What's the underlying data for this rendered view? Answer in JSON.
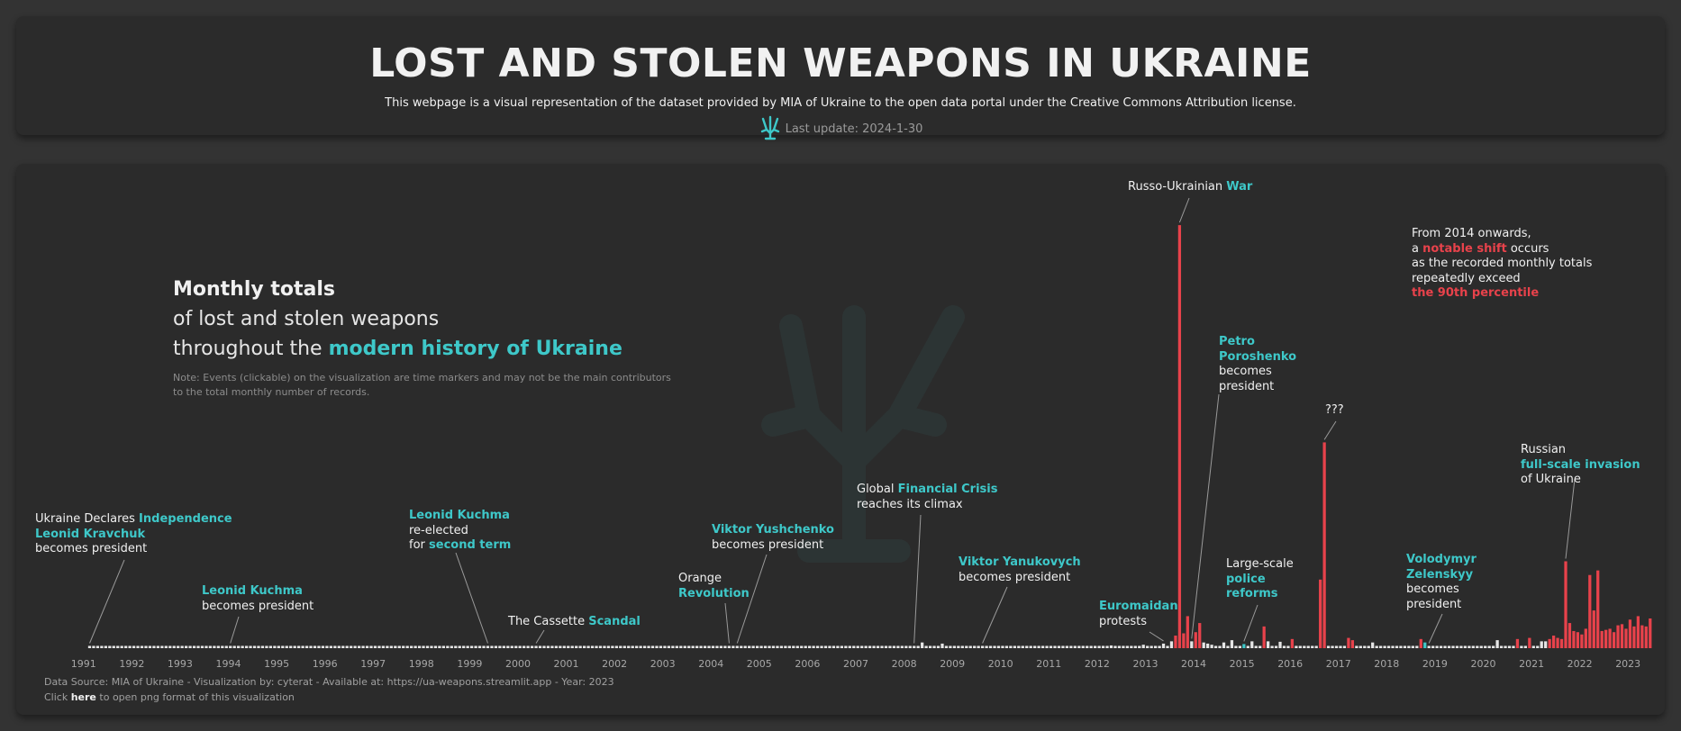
{
  "header": {
    "title": "LOST AND STOLEN WEAPONS IN UKRAINE",
    "subtitle": "This webpage is a visual representation of the dataset provided by MIA of Ukraine to the open data portal under the Creative Commons Attribution license.",
    "update_label": "Last update: 2024-1-30"
  },
  "intro": {
    "line1": "Monthly totals",
    "line2": "of lost and stolen weapons",
    "line3_prefix": "throughout the ",
    "line3_highlight": "modern history of Ukraine",
    "note": "Note: Events (clickable) on the visualization are time markers and may not be the main contributors to the total monthly number of records."
  },
  "annotations": {
    "independence": {
      "l1_prefix": "Ukraine Declares ",
      "l1_hl": "Independence",
      "l2_hl": "Leonid Kravchuk",
      "l3": "becomes president"
    },
    "kuchma1": {
      "l1_hl": "Leonid Kuchma",
      "l2": "becomes president"
    },
    "kuchma2": {
      "l1_hl": "Leonid Kuchma",
      "l2": "re-elected",
      "l3_prefix": "for ",
      "l3_hl": "second term"
    },
    "cassette": {
      "l1_prefix": "The Cassette ",
      "l1_hl": "Scandal"
    },
    "orange": {
      "l1": "Orange",
      "l2_hl": "Revolution"
    },
    "yushchenko": {
      "l1_hl": "Viktor Yushchenko",
      "l2": "becomes president"
    },
    "crisis": {
      "l1_prefix": "Global ",
      "l1_hl": "Financial Crisis",
      "l2": "reaches its climax"
    },
    "yanukovych": {
      "l1_hl": "Viktor Yanukovych",
      "l2": "becomes president"
    },
    "euromaidan": {
      "l1_hl": "Euromaidan",
      "l2": "protests"
    },
    "war": {
      "l1_prefix": "Russo-Ukrainian ",
      "l1_hl": "War"
    },
    "poroshenko": {
      "l1_hl": "Petro",
      "l2_hl": "Poroshenko",
      "l3": "becomes",
      "l4": "president"
    },
    "police": {
      "l1": "Large-scale",
      "l2_hl": "police",
      "l3_hl": "reforms"
    },
    "question": {
      "l1": "???"
    },
    "shift": {
      "l1": "From 2014 onwards,",
      "l2_prefix": "a ",
      "l2_red": "notable shift",
      "l2_suffix": " occurs",
      "l3": "as the recorded monthly totals",
      "l4": "repeatedly exceed",
      "l5_red": "the 90th percentile"
    },
    "zelenskyy": {
      "l1_hl": "Volodymyr",
      "l2_hl": "Zelenskyy",
      "l3": "becomes",
      "l4": "president"
    },
    "invasion": {
      "l1": "Russian",
      "l2_hl": "full-scale invasion",
      "l3": "of Ukraine"
    }
  },
  "footer": {
    "source": "Data Source: MIA of Ukraine - Visualization by: cyterat - Available at: https://ua-weapons.streamlit.app - Year: 2023",
    "click_prefix": "Click ",
    "click_link": "here",
    "click_suffix": " to open png format of this visualization"
  },
  "colors": {
    "background": "#333333",
    "card": "#2b2b2b",
    "accent": "#3ec8c9",
    "above_p90": "#e8424b",
    "normal_bar": "#e6e6e6"
  },
  "chart_data": {
    "type": "bar",
    "x_start": "1991-01",
    "x_end": "2023-12",
    "xticks": [
      "1991",
      "1992",
      "1993",
      "1994",
      "1995",
      "1996",
      "1997",
      "1998",
      "1999",
      "2000",
      "2001",
      "2002",
      "2003",
      "2004",
      "2005",
      "2006",
      "2007",
      "2008",
      "2009",
      "2010",
      "2011",
      "2012",
      "2013",
      "2014",
      "2015",
      "2016",
      "2017",
      "2018",
      "2019",
      "2020",
      "2021",
      "2022",
      "2023"
    ],
    "ylim": [
      0,
      2000
    ],
    "grid": false,
    "baseline_value": 10,
    "monthly_highlights": [
      {
        "month": "2008-11",
        "value": 25
      },
      {
        "month": "2009-04",
        "value": 20
      },
      {
        "month": "2012-10",
        "value": 12
      },
      {
        "month": "2013-06",
        "value": 15
      },
      {
        "month": "2013-11",
        "value": 20
      },
      {
        "month": "2014-01",
        "value": 30
      },
      {
        "month": "2014-02",
        "value": 55,
        "red": true
      },
      {
        "month": "2014-03",
        "value": 1850,
        "red": true
      },
      {
        "month": "2014-04",
        "value": 65,
        "red": true
      },
      {
        "month": "2014-05",
        "value": 140,
        "red": true
      },
      {
        "month": "2014-06",
        "value": 30
      },
      {
        "month": "2014-07",
        "value": 70,
        "red": true
      },
      {
        "month": "2014-08",
        "value": 110,
        "red": true
      },
      {
        "month": "2014-09",
        "value": 25
      },
      {
        "month": "2014-10",
        "value": 20
      },
      {
        "month": "2014-11",
        "value": 15
      },
      {
        "month": "2015-02",
        "value": 25
      },
      {
        "month": "2015-04",
        "value": 35
      },
      {
        "month": "2015-07",
        "value": 18,
        "accent": true
      },
      {
        "month": "2015-09",
        "value": 30
      },
      {
        "month": "2015-12",
        "value": 95,
        "red": true
      },
      {
        "month": "2016-01",
        "value": 30
      },
      {
        "month": "2016-04",
        "value": 28
      },
      {
        "month": "2016-07",
        "value": 40,
        "red": true
      },
      {
        "month": "2017-02",
        "value": 300,
        "red": true
      },
      {
        "month": "2017-03",
        "value": 900,
        "red": true
      },
      {
        "month": "2017-09",
        "value": 45,
        "red": true
      },
      {
        "month": "2017-10",
        "value": 35,
        "red": true
      },
      {
        "month": "2018-03",
        "value": 25
      },
      {
        "month": "2019-03",
        "value": 40,
        "red": true
      },
      {
        "month": "2019-04",
        "value": 25,
        "accent": true
      },
      {
        "month": "2020-10",
        "value": 35
      },
      {
        "month": "2021-03",
        "value": 40,
        "red": true
      },
      {
        "month": "2021-06",
        "value": 45,
        "red": true
      },
      {
        "month": "2021-09",
        "value": 30
      },
      {
        "month": "2021-10",
        "value": 30
      },
      {
        "month": "2021-11",
        "value": 40,
        "red": true
      },
      {
        "month": "2021-12",
        "value": 55,
        "red": true
      },
      {
        "month": "2022-01",
        "value": 45,
        "red": true
      },
      {
        "month": "2022-02",
        "value": 40,
        "red": true
      },
      {
        "month": "2022-03",
        "value": 380,
        "red": true
      },
      {
        "month": "2022-04",
        "value": 110,
        "red": true
      },
      {
        "month": "2022-05",
        "value": 75,
        "red": true
      },
      {
        "month": "2022-06",
        "value": 70,
        "red": true
      },
      {
        "month": "2022-07",
        "value": 60,
        "red": true
      },
      {
        "month": "2022-08",
        "value": 85,
        "red": true
      },
      {
        "month": "2022-09",
        "value": 320,
        "red": true
      },
      {
        "month": "2022-10",
        "value": 165,
        "red": true
      },
      {
        "month": "2022-11",
        "value": 340,
        "red": true
      },
      {
        "month": "2022-12",
        "value": 75,
        "red": true
      },
      {
        "month": "2023-01",
        "value": 80,
        "red": true
      },
      {
        "month": "2023-02",
        "value": 85,
        "red": true
      },
      {
        "month": "2023-03",
        "value": 70,
        "red": true
      },
      {
        "month": "2023-04",
        "value": 100,
        "red": true
      },
      {
        "month": "2023-05",
        "value": 105,
        "red": true
      },
      {
        "month": "2023-06",
        "value": 85,
        "red": true
      },
      {
        "month": "2023-07",
        "value": 125,
        "red": true
      },
      {
        "month": "2023-08",
        "value": 95,
        "red": true
      },
      {
        "month": "2023-09",
        "value": 140,
        "red": true
      },
      {
        "month": "2023-10",
        "value": 100,
        "red": true
      },
      {
        "month": "2023-11",
        "value": 95,
        "red": true
      },
      {
        "month": "2023-12",
        "value": 130,
        "red": true
      }
    ],
    "events": [
      {
        "key": "independence",
        "month": "1991-08"
      },
      {
        "key": "kuchma1",
        "month": "1994-07"
      },
      {
        "key": "kuchma2",
        "month": "1999-11"
      },
      {
        "key": "cassette",
        "month": "2000-11"
      },
      {
        "key": "orange",
        "month": "2004-11"
      },
      {
        "key": "yushchenko",
        "month": "2005-01"
      },
      {
        "key": "crisis",
        "month": "2008-09"
      },
      {
        "key": "yanukovych",
        "month": "2010-02"
      },
      {
        "key": "euromaidan",
        "month": "2013-11"
      },
      {
        "key": "war",
        "month": "2014-03"
      },
      {
        "key": "poroshenko",
        "month": "2014-06"
      },
      {
        "key": "police",
        "month": "2015-07"
      },
      {
        "key": "question",
        "month": "2017-03"
      },
      {
        "key": "zelenskyy",
        "month": "2019-05"
      },
      {
        "key": "invasion",
        "month": "2022-03"
      }
    ]
  }
}
